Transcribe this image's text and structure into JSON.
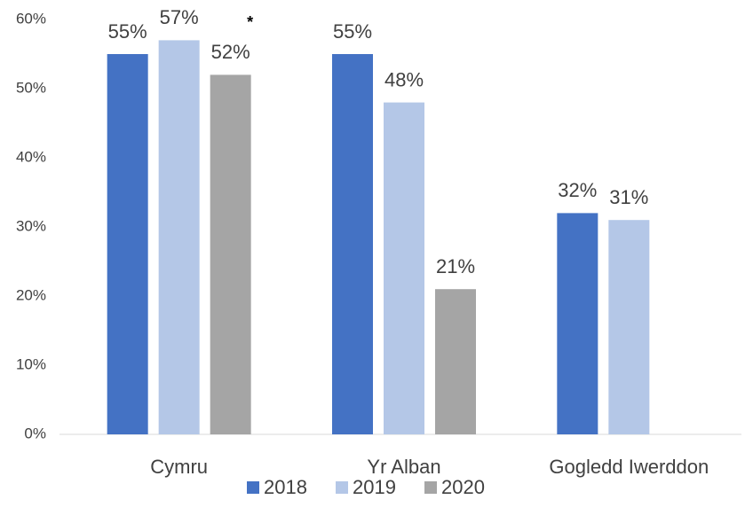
{
  "chart_data": {
    "type": "bar",
    "categories": [
      "Cymru",
      "Yr Alban",
      "Gogledd Iwerddon"
    ],
    "series": [
      {
        "name": "2018",
        "color": "#4472c4",
        "values": [
          55,
          55,
          32
        ],
        "value_labels": [
          "55%",
          "55%",
          "32%"
        ]
      },
      {
        "name": "2019",
        "color": "#b4c7e7",
        "values": [
          57,
          48,
          31
        ],
        "value_labels": [
          "57%",
          "48%",
          "31%"
        ]
      },
      {
        "name": "2020",
        "color": "#a5a5a5",
        "values": [
          52,
          21,
          null
        ],
        "value_labels": [
          "52%",
          "21%",
          null
        ]
      }
    ],
    "annotations": [
      {
        "text": "*",
        "category": "Cymru",
        "series": "2020"
      }
    ],
    "ylim": [
      0,
      60
    ],
    "yticks": [
      {
        "value": 0,
        "label": "0%"
      },
      {
        "value": 10,
        "label": "10%"
      },
      {
        "value": 20,
        "label": "20%"
      },
      {
        "value": 30,
        "label": "30%"
      },
      {
        "value": 40,
        "label": "40%"
      },
      {
        "value": 50,
        "label": "50%"
      },
      {
        "value": 60,
        "label": "60%"
      }
    ],
    "grid": false,
    "legend": "bottom"
  }
}
